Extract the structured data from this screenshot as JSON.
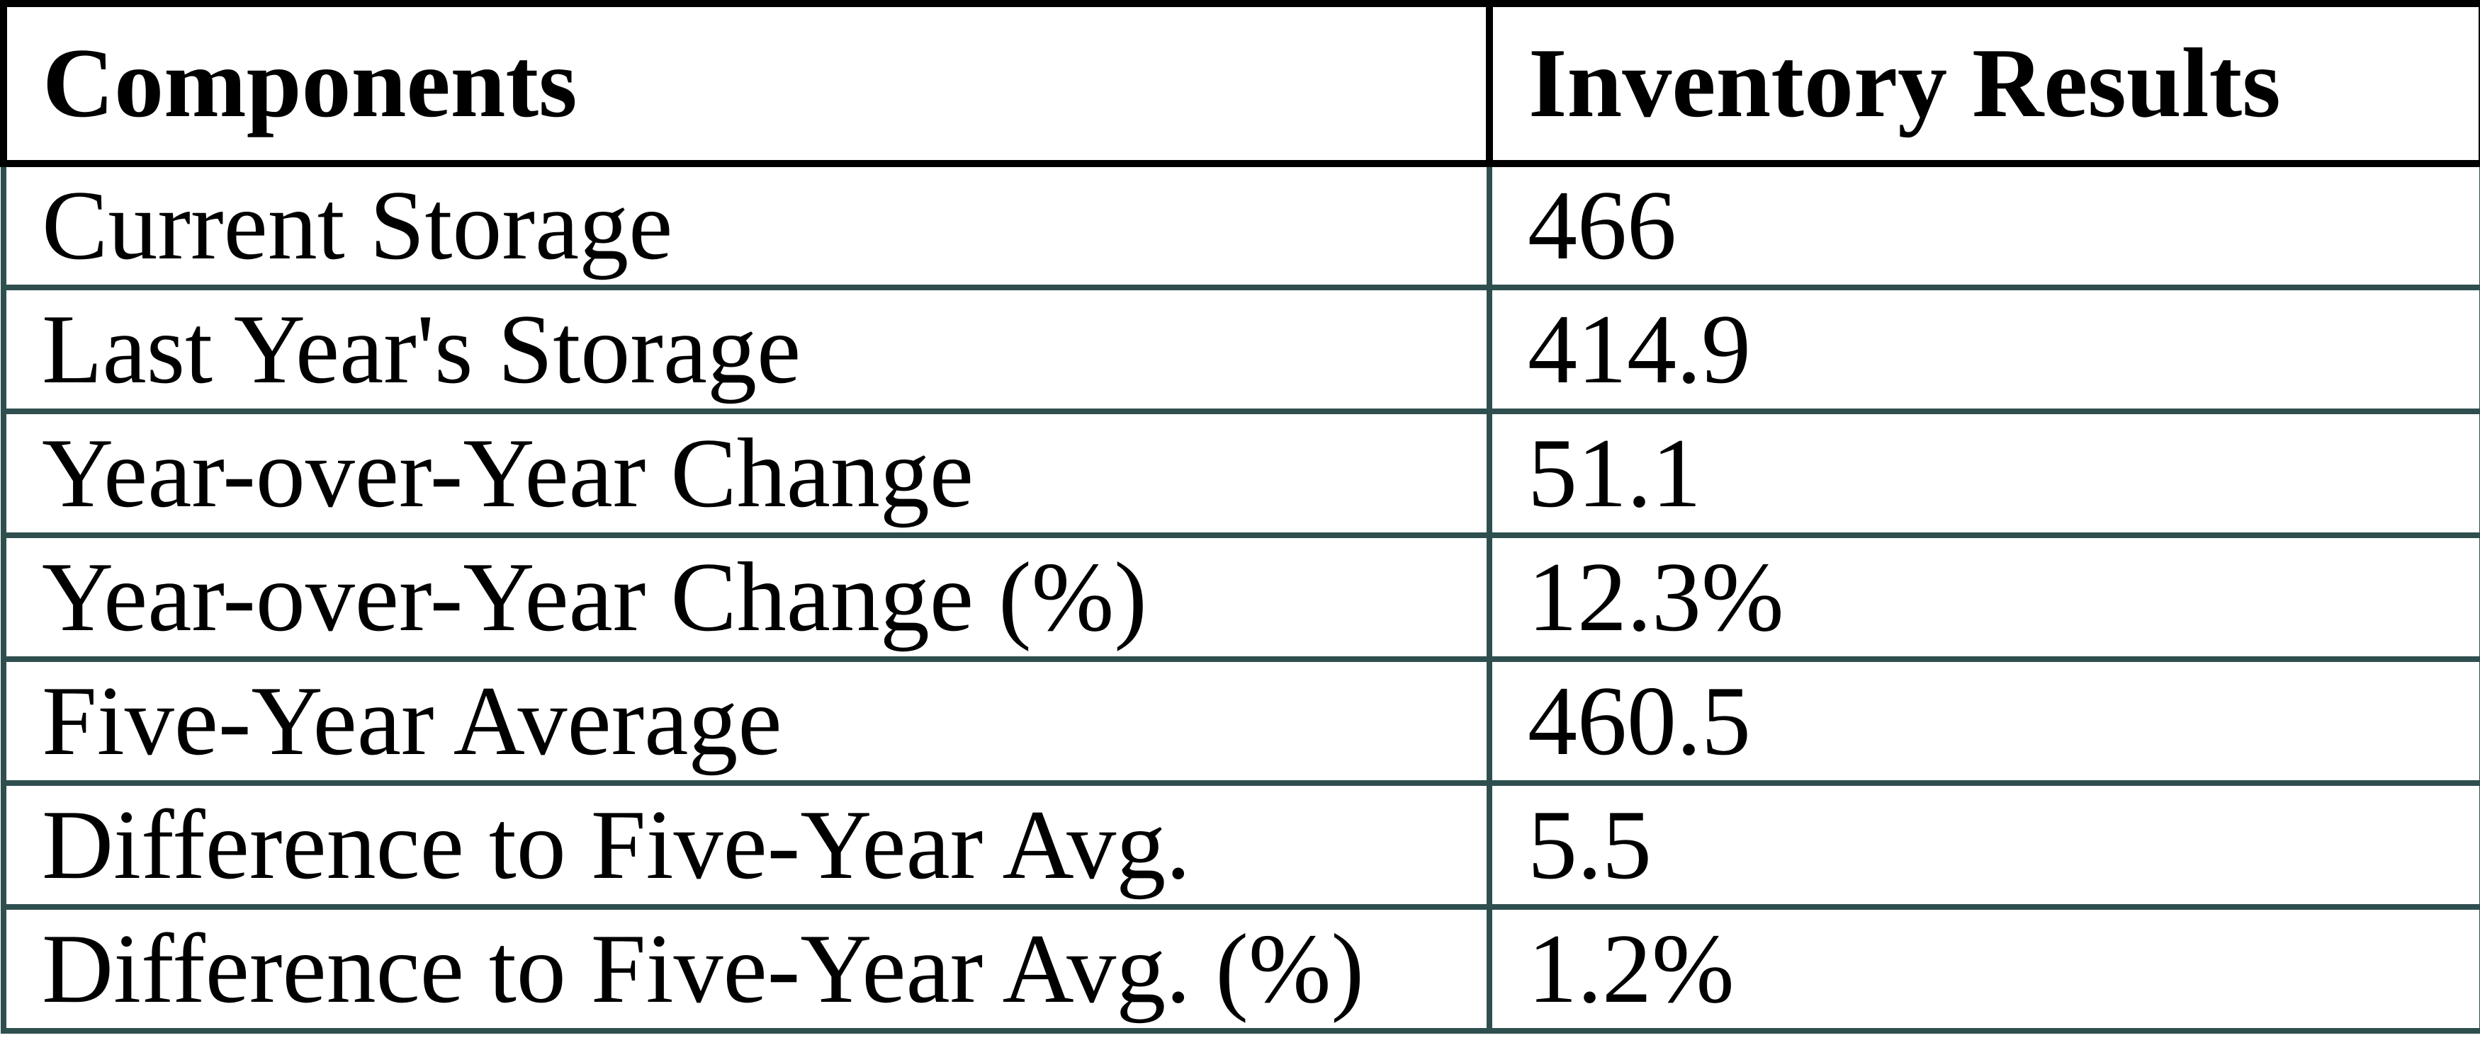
{
  "chart_data": {
    "type": "table",
    "columns": [
      "Components",
      "Inventory Results"
    ],
    "rows": [
      {
        "label": "Current Storage",
        "value": "466"
      },
      {
        "label": "Last Year's Storage",
        "value": "414.9"
      },
      {
        "label": "Year-over-Year Change",
        "value": "51.1"
      },
      {
        "label": "Year-over-Year Change (%)",
        "value": "12.3%"
      },
      {
        "label": "Five-Year Average",
        "value": "460.5"
      },
      {
        "label": "Difference to Five-Year Avg.",
        "value": "5.5"
      },
      {
        "label": "Difference to Five-Year Avg. (%)",
        "value": "1.2%"
      }
    ]
  },
  "colors": {
    "header_border": "#000000",
    "row_border": "#2F4F4F",
    "text": "#000000",
    "background": "#FFFFFF"
  }
}
